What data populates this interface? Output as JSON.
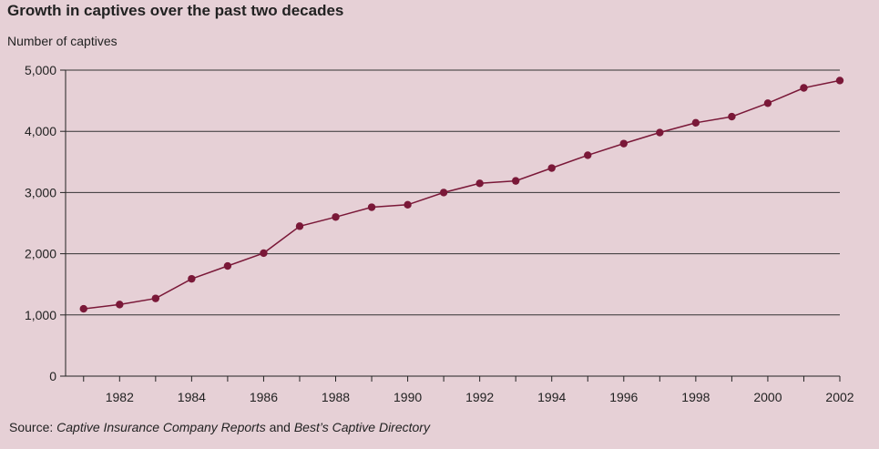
{
  "chart_data": {
    "type": "line",
    "title": "Growth in captives over the past two decades",
    "ylabel": "Number of captives",
    "xlabel": "",
    "x": [
      1981,
      1982,
      1983,
      1984,
      1985,
      1986,
      1987,
      1988,
      1989,
      1990,
      1991,
      1992,
      1993,
      1994,
      1995,
      1996,
      1997,
      1998,
      1999,
      2000,
      2001,
      2002
    ],
    "values": [
      1100,
      1170,
      1270,
      1590,
      1800,
      2010,
      2450,
      2600,
      2760,
      2800,
      3000,
      3150,
      3190,
      3400,
      3610,
      3800,
      3980,
      4140,
      4240,
      4460,
      4710,
      4830
    ],
    "ylim": [
      0,
      5000
    ],
    "xlim": [
      1980.5,
      2002
    ],
    "yticks": [
      0,
      1000,
      2000,
      3000,
      4000,
      5000
    ],
    "ytick_labels": [
      "0",
      "1,000",
      "2,000",
      "3,000",
      "4,000",
      "5,000"
    ],
    "xticks": [
      1982,
      1984,
      1986,
      1988,
      1990,
      1992,
      1994,
      1996,
      1998,
      2000,
      2002
    ],
    "xtick_labels": [
      "1982",
      "1984",
      "1986",
      "1988",
      "1990",
      "1992",
      "1994",
      "1996",
      "1998",
      "2000",
      "2002"
    ],
    "grid": "horizontal",
    "line_color": "#7a1838",
    "background_color": "#e6d0d6"
  },
  "source": {
    "prefix": "Source: ",
    "ref1": "Captive Insurance Company Reports",
    "conj": " and ",
    "ref2": "Best’s Captive Directory"
  }
}
